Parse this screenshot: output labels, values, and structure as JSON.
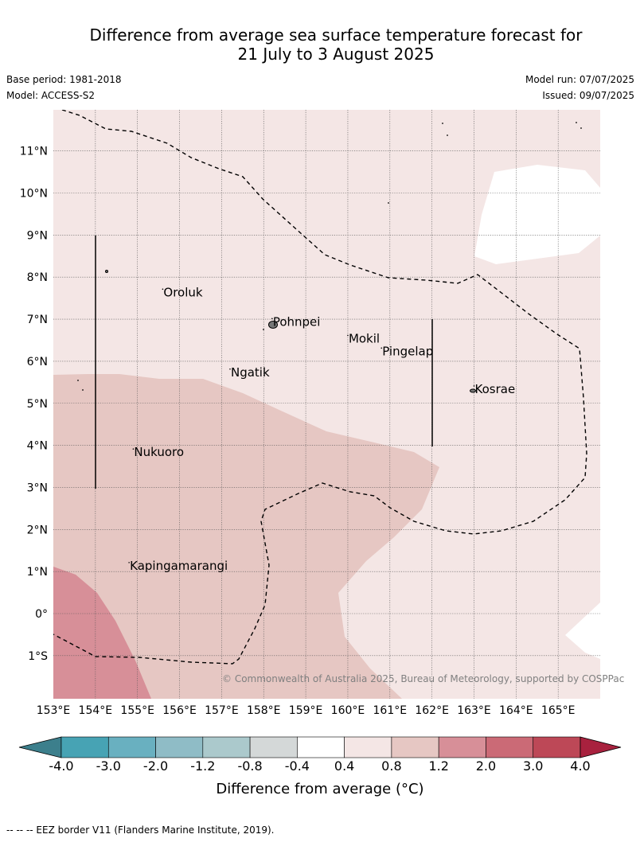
{
  "title": {
    "line1": "Difference from average sea surface temperature forecast for",
    "line2": "21 July to 3 August 2025"
  },
  "meta": {
    "base_period": "Base period: 1981-2018",
    "model": "Model: ACCESS-S2",
    "model_run": "Model run: 07/07/2025",
    "issued": "Issued: 09/07/2025"
  },
  "map": {
    "lon_range": [
      153,
      166
    ],
    "lat_range": [
      -2,
      12
    ],
    "lon_ticks": [
      153,
      154,
      155,
      156,
      157,
      158,
      159,
      160,
      161,
      162,
      163,
      164,
      165
    ],
    "lon_tick_labels": [
      "153°E",
      "154°E",
      "155°E",
      "156°E",
      "157°E",
      "158°E",
      "159°E",
      "160°E",
      "161°E",
      "162°E",
      "163°E",
      "164°E",
      "165°E"
    ],
    "lat_ticks": [
      11,
      10,
      9,
      8,
      7,
      6,
      5,
      4,
      3,
      2,
      1,
      0,
      -1
    ],
    "lat_tick_labels": [
      "11°N",
      "10°N",
      "9°N",
      "8°N",
      "7°N",
      "6°N",
      "5°N",
      "4°N",
      "3°N",
      "2°N",
      "1°N",
      "0°",
      "1°S"
    ],
    "places": [
      {
        "name": "Oroluk",
        "lon": 155.6,
        "lat": 7.6
      },
      {
        "name": "Pohnpei",
        "lon": 158.2,
        "lat": 6.9
      },
      {
        "name": "Mokil",
        "lon": 160.0,
        "lat": 6.5
      },
      {
        "name": "Pingelap",
        "lon": 160.8,
        "lat": 6.2
      },
      {
        "name": "Ngatik",
        "lon": 157.2,
        "lat": 5.7
      },
      {
        "name": "Kosrae",
        "lon": 163.0,
        "lat": 5.3
      },
      {
        "name": "Nukuoro",
        "lon": 154.9,
        "lat": 3.8
      },
      {
        "name": "Kapingamarangi",
        "lon": 154.8,
        "lat": 1.1
      }
    ],
    "copyright": "© Commonwealth of Australia 2025, Bureau of Meteorology, supported by COSPPac"
  },
  "colorbar": {
    "levels": [
      "-4.0",
      "-3.0",
      "-2.0",
      "-1.2",
      "-0.8",
      "-0.4",
      "0.4",
      "0.8",
      "1.2",
      "2.0",
      "3.0",
      "4.0"
    ],
    "colors": [
      "#47a3b4",
      "#69b0c0",
      "#8fbcc6",
      "#abc9cc",
      "#d4d8d8",
      "#ffffff",
      "#f4e6e5",
      "#e6c7c3",
      "#d78f98",
      "#cb6a76",
      "#bd4857"
    ],
    "under_color": "#3c7f8c",
    "over_color": "#a8213e",
    "label": "Difference from average (°C)"
  },
  "footnote": "--  --  -- EEZ border V11 (Flanders Marine Institute, 2019)."
}
